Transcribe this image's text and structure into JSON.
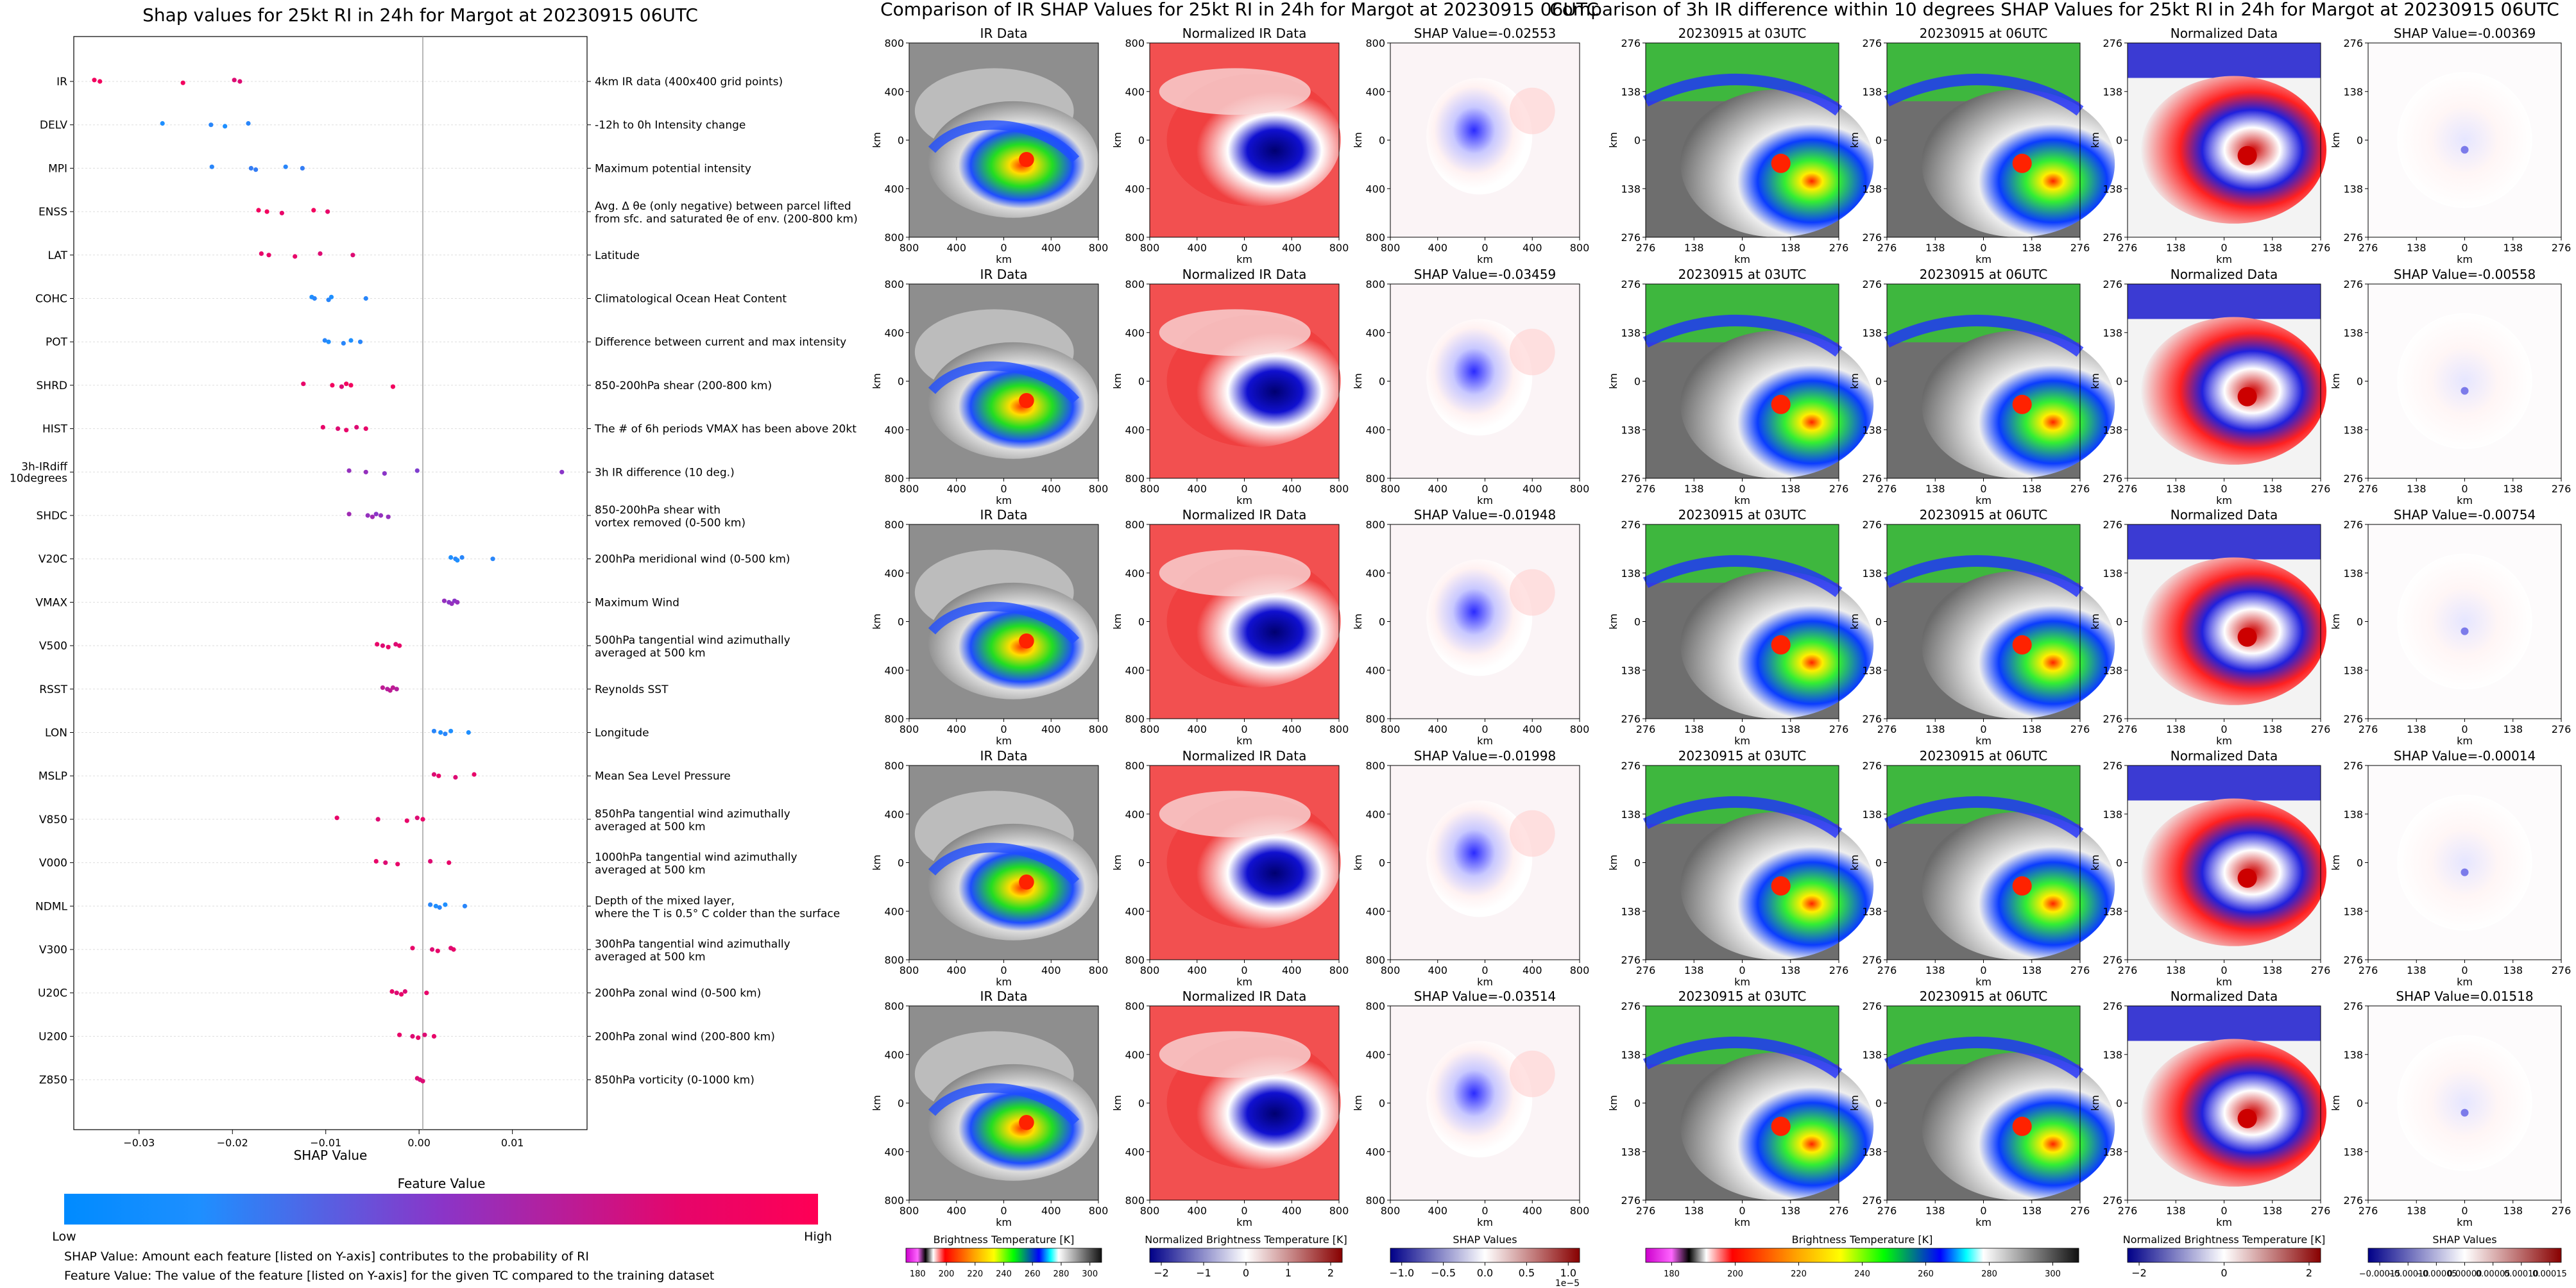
{
  "colors": {
    "low": "#1e8fff",
    "mid": "#8a35c8",
    "high": "#f2005e",
    "shap_neg": "#0000cc",
    "shap_pos": "#cc0000",
    "norm_neg": "#0a0aa0",
    "norm_pos": "#e00000",
    "grey": "#8e8e8e"
  },
  "chart_data": [
    {
      "type": "scatter",
      "title": "Shap values for 25kt RI in 24h for Margot at 20230915 06UTC",
      "xlabel": "SHAP Value",
      "xlim": [
        -0.037,
        0.018
      ],
      "xticks": [
        -0.03,
        -0.02,
        -0.01,
        0.0,
        0.01
      ],
      "xtick_labels": [
        "−0.03",
        "−0.02",
        "−0.01",
        "0.00",
        "0.01"
      ],
      "colorbar": {
        "title": "Feature Value",
        "low_label": "Low",
        "high_label": "High"
      },
      "features": [
        {
          "name": "IR",
          "desc": [
            "4km IR data (400x400 grid points)"
          ],
          "points": [
            [
              -0.0348,
              1.0
            ],
            [
              -0.0342,
              1.0
            ],
            [
              -0.0253,
              1.0
            ],
            [
              -0.0198,
              0.9
            ],
            [
              -0.0192,
              0.9
            ]
          ]
        },
        {
          "name": "DELV",
          "desc": [
            "-12h to 0h Intensity change"
          ],
          "points": [
            [
              -0.0275,
              0.0
            ],
            [
              -0.0223,
              0.05
            ],
            [
              -0.0208,
              0.0
            ],
            [
              -0.0183,
              0.05
            ]
          ]
        },
        {
          "name": "MPI",
          "desc": [
            "Maximum potential intensity"
          ],
          "points": [
            [
              -0.0222,
              0.05
            ],
            [
              -0.018,
              0.1
            ],
            [
              -0.0175,
              0.1
            ],
            [
              -0.0143,
              0.05
            ],
            [
              -0.0125,
              0.1
            ]
          ]
        },
        {
          "name": "ENSS",
          "desc": [
            "Avg. Δ θe (only negative) between parcel lifted",
            "from sfc. and saturated θe of env. (200-800 km)"
          ],
          "points": [
            [
              -0.0172,
              1.0
            ],
            [
              -0.0163,
              1.0
            ],
            [
              -0.0147,
              0.95
            ],
            [
              -0.0113,
              1.0
            ],
            [
              -0.0098,
              0.95
            ]
          ]
        },
        {
          "name": "LAT",
          "desc": [
            "Latitude"
          ],
          "points": [
            [
              -0.0169,
              0.95
            ],
            [
              -0.0161,
              0.95
            ],
            [
              -0.0133,
              0.95
            ],
            [
              -0.0106,
              0.9
            ],
            [
              -0.0071,
              0.9
            ]
          ]
        },
        {
          "name": "COHC",
          "desc": [
            "Climatological Ocean Heat Content"
          ],
          "points": [
            [
              -0.0115,
              0.0
            ],
            [
              -0.0112,
              0.05
            ],
            [
              -0.0097,
              0.05
            ],
            [
              -0.0094,
              0.0
            ],
            [
              -0.0057,
              0.05
            ]
          ]
        },
        {
          "name": "POT",
          "desc": [
            "Difference between current and max intensity"
          ],
          "points": [
            [
              -0.0101,
              0.05
            ],
            [
              -0.0097,
              0.0
            ],
            [
              -0.0081,
              0.05
            ],
            [
              -0.0073,
              0.0
            ],
            [
              -0.0063,
              0.05
            ]
          ]
        },
        {
          "name": "SHRD",
          "desc": [
            "850-200hPa shear (200-800 km)"
          ],
          "points": [
            [
              -0.0124,
              0.95
            ],
            [
              -0.0093,
              1.0
            ],
            [
              -0.0083,
              0.9
            ],
            [
              -0.0078,
              1.0
            ],
            [
              -0.0073,
              1.0
            ],
            [
              -0.0028,
              1.0
            ]
          ]
        },
        {
          "name": "HIST",
          "desc": [
            "The # of 6h periods VMAX has been above 20kt"
          ],
          "points": [
            [
              -0.0103,
              0.95
            ],
            [
              -0.0087,
              0.9
            ],
            [
              -0.0078,
              0.95
            ],
            [
              -0.0067,
              0.9
            ],
            [
              -0.0057,
              0.95
            ]
          ]
        },
        {
          "name": "3h-IRdiff\n10degrees",
          "desc": [
            "3h IR difference (10 deg.)"
          ],
          "points": [
            [
              -0.0075,
              0.55
            ],
            [
              -0.0057,
              0.55
            ],
            [
              -0.0037,
              0.5
            ],
            [
              -0.0002,
              0.45
            ],
            [
              0.0153,
              0.5
            ]
          ]
        },
        {
          "name": "SHDC",
          "desc": [
            "850-200hPa shear with",
            "vortex removed (0-500 km)"
          ],
          "points": [
            [
              -0.0075,
              0.6
            ],
            [
              -0.0055,
              0.55
            ],
            [
              -0.005,
              0.6
            ],
            [
              -0.0046,
              0.5
            ],
            [
              -0.0041,
              0.55
            ],
            [
              -0.0033,
              0.55
            ]
          ]
        },
        {
          "name": "V20C",
          "desc": [
            "200hPa meridional wind (0-500 km)"
          ],
          "points": [
            [
              0.0034,
              0.0
            ],
            [
              0.0039,
              0.05
            ],
            [
              0.0041,
              0.0
            ],
            [
              0.0046,
              0.05
            ],
            [
              0.0079,
              0.05
            ]
          ]
        },
        {
          "name": "VMAX",
          "desc": [
            "Maximum Wind"
          ],
          "points": [
            [
              0.0027,
              0.55
            ],
            [
              0.0032,
              0.5
            ],
            [
              0.0035,
              0.55
            ],
            [
              0.0038,
              0.5
            ],
            [
              0.0041,
              0.55
            ]
          ]
        },
        {
          "name": "V500",
          "desc": [
            "500hPa tangential wind azimuthally",
            "averaged at 500 km"
          ],
          "points": [
            [
              -0.0045,
              0.95
            ],
            [
              -0.0039,
              0.9
            ],
            [
              -0.0033,
              0.95
            ],
            [
              -0.0025,
              0.9
            ],
            [
              -0.0021,
              0.95
            ]
          ]
        },
        {
          "name": "RSST",
          "desc": [
            "Reynolds SST"
          ],
          "points": [
            [
              -0.0039,
              0.75
            ],
            [
              -0.0034,
              0.7
            ],
            [
              -0.0031,
              0.75
            ],
            [
              -0.0028,
              0.75
            ],
            [
              -0.0024,
              0.7
            ]
          ]
        },
        {
          "name": "LON",
          "desc": [
            "Longitude"
          ],
          "points": [
            [
              0.0016,
              0.05
            ],
            [
              0.0023,
              0.0
            ],
            [
              0.0028,
              0.05
            ],
            [
              0.0034,
              0.0
            ],
            [
              0.0053,
              0.0
            ]
          ]
        },
        {
          "name": "MSLP",
          "desc": [
            "Mean Sea Level Pressure"
          ],
          "points": [
            [
              0.0016,
              0.9
            ],
            [
              0.0021,
              0.95
            ],
            [
              0.0039,
              0.9
            ],
            [
              0.0059,
              0.95
            ]
          ]
        },
        {
          "name": "V850",
          "desc": [
            "850hPa tangential wind azimuthally",
            "averaged at 500 km"
          ],
          "points": [
            [
              -0.0088,
              0.95
            ],
            [
              -0.0044,
              0.9
            ],
            [
              -0.0013,
              0.95
            ],
            [
              -0.0002,
              0.9
            ],
            [
              0.0004,
              0.95
            ]
          ]
        },
        {
          "name": "V000",
          "desc": [
            "1000hPa tangential wind azimuthally",
            "averaged at 500 km"
          ],
          "points": [
            [
              -0.0046,
              0.95
            ],
            [
              -0.0036,
              0.9
            ],
            [
              -0.0023,
              0.95
            ],
            [
              0.0012,
              0.9
            ],
            [
              0.0032,
              0.95
            ]
          ]
        },
        {
          "name": "NDML",
          "desc": [
            "Depth of the mixed layer,",
            "where the T is 0.5° C colder than the surface"
          ],
          "points": [
            [
              0.0012,
              0.05
            ],
            [
              0.0018,
              0.0
            ],
            [
              0.0022,
              0.05
            ],
            [
              0.0028,
              0.0
            ],
            [
              0.0049,
              0.05
            ]
          ]
        },
        {
          "name": "V300",
          "desc": [
            "300hPa tangential wind azimuthally",
            "averaged at 500 km"
          ],
          "points": [
            [
              -0.0007,
              0.95
            ],
            [
              0.0014,
              0.9
            ],
            [
              0.002,
              0.95
            ],
            [
              0.0034,
              0.9
            ],
            [
              0.0037,
              0.95
            ]
          ]
        },
        {
          "name": "U20C",
          "desc": [
            "200hPa zonal wind (0-500 km)"
          ],
          "points": [
            [
              -0.0029,
              0.95
            ],
            [
              -0.0024,
              0.9
            ],
            [
              -0.0019,
              0.95
            ],
            [
              -0.0015,
              0.9
            ],
            [
              0.0008,
              0.95
            ]
          ]
        },
        {
          "name": "U200",
          "desc": [
            "200hPa zonal wind (200-800 km)"
          ],
          "points": [
            [
              -0.0021,
              0.95
            ],
            [
              -0.0007,
              0.9
            ],
            [
              -0.0001,
              0.95
            ],
            [
              0.0006,
              0.9
            ],
            [
              0.0016,
              0.95
            ]
          ]
        },
        {
          "name": "Z850",
          "desc": [
            "850hPa vorticity (0-1000 km)"
          ],
          "points": [
            [
              -0.0002,
              0.9
            ],
            [
              0.0001,
              0.85
            ],
            [
              0.0004,
              0.9
            ]
          ]
        }
      ]
    },
    {
      "type": "heatmap",
      "title": "Comparison of IR SHAP Values for 25kt RI in 24h for Margot at 20230915 06UTC",
      "columns": [
        "IR Data",
        "Normalized IR Data"
      ],
      "shap_titles": [
        "SHAP Value=-0.02553",
        "SHAP Value=-0.03459",
        "SHAP Value=-0.01948",
        "SHAP Value=-0.01998",
        "SHAP Value=-0.03514"
      ],
      "shap_values": [
        -0.02553,
        -0.03459,
        -0.01948,
        -0.01998,
        -0.03514
      ],
      "xticks": [
        "800",
        "400",
        "0",
        "400",
        "800"
      ],
      "yticks": [
        "800",
        "400",
        "0",
        "400",
        "800"
      ],
      "axis_label": "km",
      "colorbars": [
        {
          "label": "Brightness Temperature [K]",
          "ticks": [
            "180",
            "200",
            "220",
            "240",
            "260",
            "280",
            "300"
          ]
        },
        {
          "label": "Normalized Brightness Temperature [K]",
          "ticks": [
            "−2",
            "−1",
            "0",
            "1",
            "2"
          ]
        },
        {
          "label": "SHAP Values",
          "ticks": [
            "−1.0",
            "−0.5",
            "0.0",
            "0.5",
            "1.0"
          ],
          "multiplier": "1e−5"
        }
      ]
    },
    {
      "type": "heatmap",
      "title": "Comparison of 3h IR difference within 10 degrees SHAP Values for 25kt RI in 24h for Margot at 20230915 06UTC",
      "columns": [
        "20230915 at 03UTC",
        "20230915 at 06UTC",
        "Normalized Data"
      ],
      "shap_titles": [
        "SHAP Value=-0.00369",
        "SHAP Value=-0.00558",
        "SHAP Value=-0.00754",
        "SHAP Value=-0.00014",
        "SHAP Value=0.01518"
      ],
      "shap_values": [
        -0.00369,
        -0.00558,
        -0.00754,
        -0.00014,
        0.01518
      ],
      "xticks": [
        "276",
        "138",
        "0",
        "138",
        "276"
      ],
      "yticks": [
        "276",
        "138",
        "0",
        "138",
        "276"
      ],
      "axis_label": "km",
      "colorbars": [
        {
          "label": "Brightness Temperature [K]",
          "ticks": [
            "180",
            "200",
            "220",
            "240",
            "260",
            "280",
            "300"
          ]
        },
        {
          "label": "Normalized Brightness Temperature [K]",
          "ticks": [
            "−2",
            "0",
            "2"
          ]
        },
        {
          "label": "SHAP Values",
          "ticks": [
            "−0.00015",
            "−0.00010",
            "−0.00005",
            "0.00000",
            "0.00005",
            "0.00010",
            "0.00015"
          ]
        }
      ]
    }
  ],
  "notes": [
    "SHAP Value: Amount each feature [listed on Y-axis] contributes to the probability of RI",
    "Feature Value: The value of the feature [listed on Y-axis] for the given TC compared to the training dataset"
  ]
}
